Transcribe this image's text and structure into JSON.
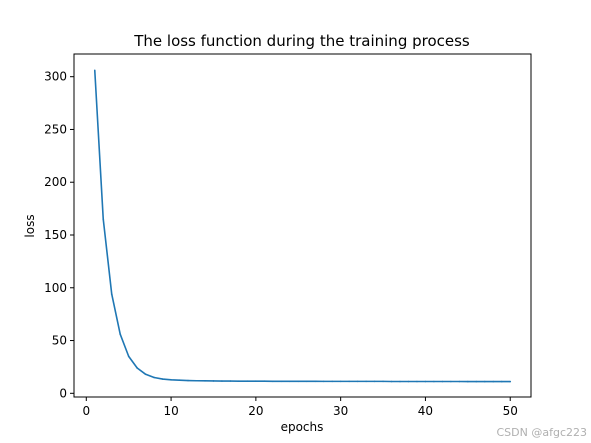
{
  "chart_data": {
    "type": "line",
    "title": "The loss function during the training process",
    "xlabel": "epochs",
    "ylabel": "loss",
    "xlim": [
      -1.45,
      52.45
    ],
    "ylim": [
      -3.5,
      321.5
    ],
    "xticks": [
      0,
      10,
      20,
      30,
      40,
      50
    ],
    "yticks": [
      0,
      50,
      100,
      150,
      200,
      250,
      300
    ],
    "grid": false,
    "series": [
      {
        "color": "#1f77b4",
        "x": [
          1,
          2,
          3,
          4,
          5,
          6,
          7,
          8,
          9,
          10,
          11,
          12,
          13,
          14,
          15,
          16,
          17,
          18,
          19,
          20,
          21,
          22,
          23,
          24,
          25,
          26,
          27,
          28,
          29,
          30,
          31,
          32,
          33,
          34,
          35,
          36,
          37,
          38,
          39,
          40,
          41,
          42,
          43,
          44,
          45,
          46,
          47,
          48,
          49,
          50
        ],
        "y": [
          306,
          165,
          94,
          56,
          35,
          24,
          18,
          15,
          13.5,
          12.8,
          12.4,
          12.1,
          11.9,
          11.8,
          11.7,
          11.6,
          11.6,
          11.5,
          11.5,
          11.5,
          11.5,
          11.4,
          11.4,
          11.4,
          11.4,
          11.4,
          11.4,
          11.3,
          11.3,
          11.3,
          11.3,
          11.3,
          11.3,
          11.3,
          11.3,
          11.2,
          11.2,
          11.2,
          11.2,
          11.2,
          11.2,
          11.2,
          11.2,
          11.2,
          11.1,
          11.1,
          11.1,
          11.1,
          11.1,
          11.1
        ]
      }
    ]
  },
  "watermark": "CSDN @afgc223"
}
